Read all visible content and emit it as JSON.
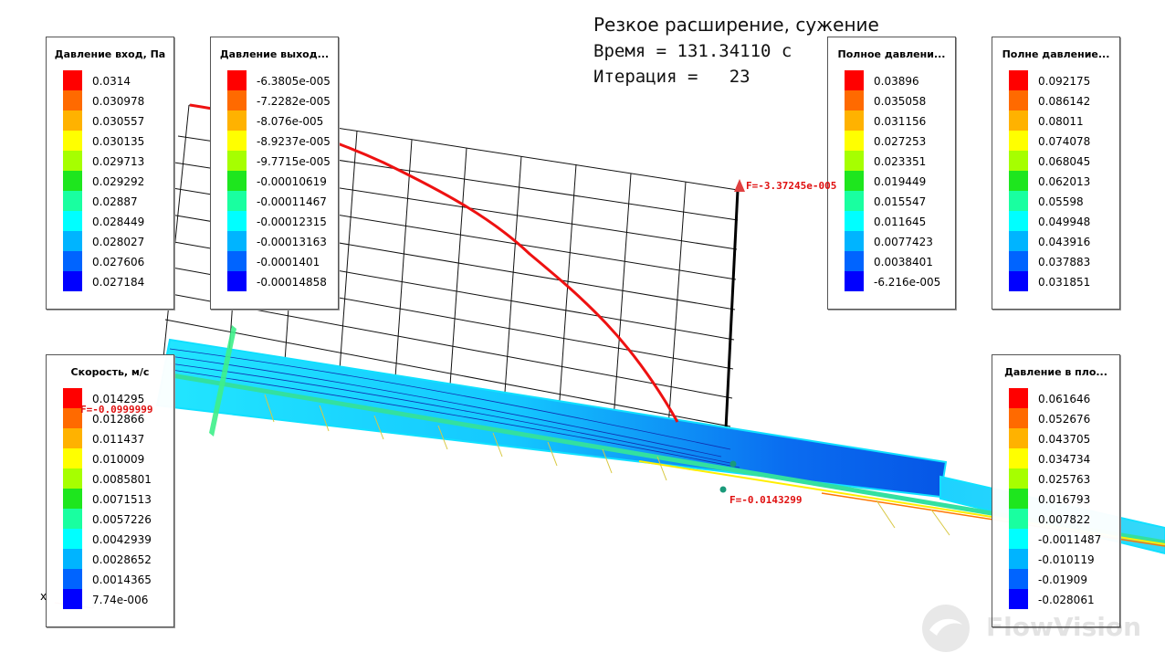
{
  "header": {
    "title": "Резкое расширение, сужение",
    "time": "Время = 131.34110 с",
    "iteration": "Итерация =   23"
  },
  "legends": [
    {
      "title": "Давление вход, Па",
      "values": [
        "0.0314",
        "0.030978",
        "0.030557",
        "0.030135",
        "0.029713",
        "0.029292",
        "0.02887",
        "0.028449",
        "0.028027",
        "0.027606",
        "0.027184"
      ]
    },
    {
      "title": "Давление выход...",
      "values": [
        "-6.3805e-005",
        "-7.2282e-005",
        "-8.076e-005",
        "-8.9237e-005",
        "-9.7715e-005",
        "-0.00010619",
        "-0.00011467",
        "-0.00012315",
        "-0.00013163",
        "-0.0001401",
        "-0.00014858"
      ]
    },
    {
      "title": "Полное давлени...",
      "values": [
        "0.03896",
        "0.035058",
        "0.031156",
        "0.027253",
        "0.023351",
        "0.019449",
        "0.015547",
        "0.011645",
        "0.0077423",
        "0.0038401",
        "-6.216e-005"
      ]
    },
    {
      "title": "Полне давление...",
      "values": [
        "0.092175",
        "0.086142",
        "0.08011",
        "0.074078",
        "0.068045",
        "0.062013",
        "0.05598",
        "0.049948",
        "0.043916",
        "0.037883",
        "0.031851"
      ]
    },
    {
      "title": "Скорость, м/с",
      "values": [
        "0.014295",
        "0.012866",
        "0.011437",
        "0.010009",
        "0.0085801",
        "0.0071513",
        "0.0057226",
        "0.0042939",
        "0.0028652",
        "0.0014365",
        "7.74e-006"
      ]
    },
    {
      "title": "Давление в пло...",
      "values": [
        "0.061646",
        "0.052676",
        "0.043705",
        "0.034734",
        "0.025763",
        "0.016793",
        "0.007822",
        "-0.0011487",
        "-0.010119",
        "-0.01909",
        "-0.028061"
      ]
    }
  ],
  "palette": [
    "#ff0000",
    "#ff6a00",
    "#ffb200",
    "#ffff00",
    "#a6ff00",
    "#1ee61e",
    "#19ffa0",
    "#00ffff",
    "#00b4ff",
    "#0064ff",
    "#0000ff"
  ],
  "forces": {
    "f1": "F=-3.37245e-005",
    "f2": "F=-0.0999999",
    "f3": "F=-0.0143299"
  },
  "axis_label": "x",
  "watermark": "FlowVision"
}
